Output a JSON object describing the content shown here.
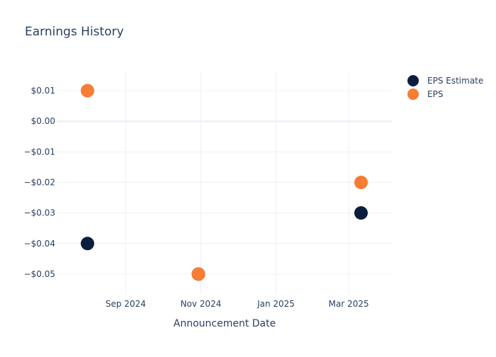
{
  "chart_data": {
    "type": "scatter",
    "title": "Earnings History",
    "xlabel": "Announcement Date",
    "ylabel": "",
    "x_axis_type": "date",
    "xlim": [
      "2024-07-07",
      "2025-04-05"
    ],
    "ylim": [
      -0.0565,
      0.0165
    ],
    "x_ticks": [
      {
        "date": "2024-09-01",
        "label": "Sep 2024"
      },
      {
        "date": "2024-11-01",
        "label": "Nov 2024"
      },
      {
        "date": "2025-01-01",
        "label": "Jan 2025"
      },
      {
        "date": "2025-03-01",
        "label": "Mar 2025"
      }
    ],
    "y_ticks": [
      {
        "value": 0.01,
        "label": "$0.01"
      },
      {
        "value": 0.0,
        "label": "$0.00"
      },
      {
        "value": -0.01,
        "label": "−$0.01"
      },
      {
        "value": -0.02,
        "label": "−$0.02"
      },
      {
        "value": -0.03,
        "label": "−$0.03"
      },
      {
        "value": -0.04,
        "label": "−$0.04"
      },
      {
        "value": -0.05,
        "label": "−$0.05"
      }
    ],
    "grid": true,
    "legend_position": "top-right",
    "series": [
      {
        "name": "EPS Estimate",
        "color": "#0b1e3f",
        "points": [
          {
            "x": "2024-08-01",
            "y": -0.04
          },
          {
            "x": "2024-10-30",
            "y": -0.05
          },
          {
            "x": "2025-03-11",
            "y": -0.03
          }
        ]
      },
      {
        "name": "EPS",
        "color": "#f77c34",
        "points": [
          {
            "x": "2024-08-01",
            "y": 0.01
          },
          {
            "x": "2024-10-30",
            "y": -0.05
          },
          {
            "x": "2025-03-11",
            "y": -0.02
          }
        ]
      }
    ]
  }
}
